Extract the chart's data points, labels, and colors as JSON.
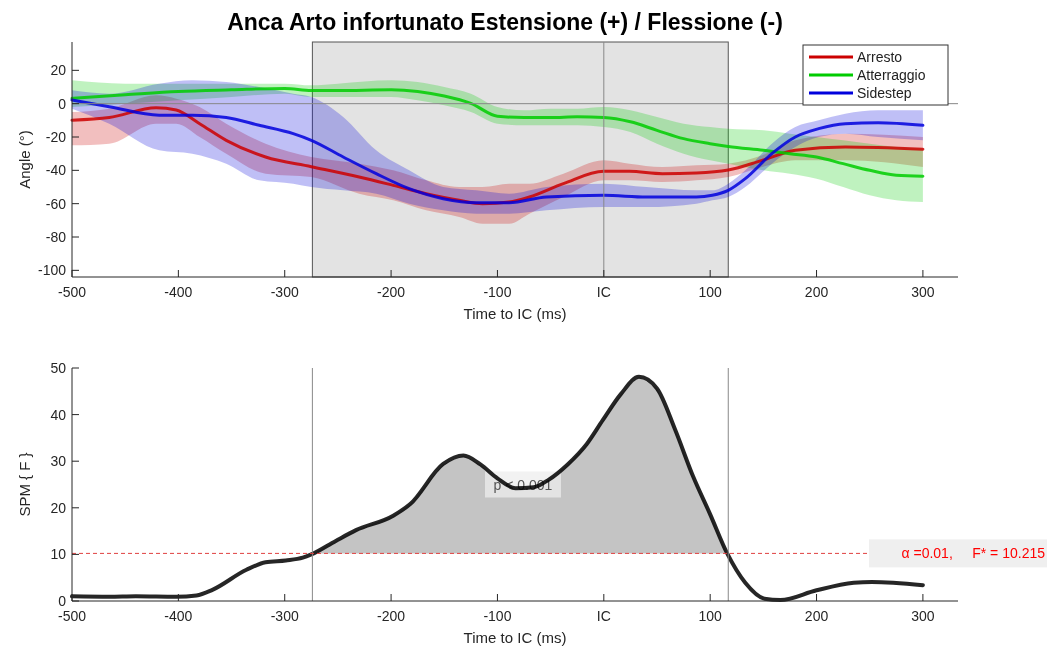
{
  "chart_data": [
    {
      "type": "line",
      "title": "Anca Arto infortunato Estensione (+) / Flessione (-)",
      "xlabel": "Time to IC (ms)",
      "ylabel": "Angle (°)",
      "xlim": [
        -500,
        333
      ],
      "ylim": [
        -104,
        37
      ],
      "xticks": [
        -500,
        -400,
        -300,
        -200,
        -100,
        {
          "value": 0,
          "label": "IC"
        },
        100,
        200,
        300
      ],
      "yticks": [
        -100,
        -80,
        -60,
        -40,
        -20,
        0,
        20
      ],
      "legend": "top right",
      "bands": [
        {
          "axis": "x",
          "from": -274,
          "to": 117,
          "color": "#e3e3e3"
        }
      ],
      "ref_lines": [
        {
          "axis": "x",
          "value": 0,
          "color": "#888888"
        },
        {
          "axis": "y",
          "value": 0,
          "color": "#888888"
        }
      ],
      "series": [
        {
          "name": "Arresto",
          "color": "#cc0000",
          "x": [
            -500,
            -465,
            -421,
            -402,
            -380,
            -355,
            -318,
            -275,
            -230,
            -198,
            -167,
            -136,
            -114,
            -89,
            -70,
            -38,
            0,
            24,
            55,
            87,
            117,
            149,
            180,
            227,
            300
          ],
          "values": [
            -9.9,
            -8.3,
            -2.4,
            -3.8,
            -12,
            -22,
            -32,
            -37.8,
            -44,
            -49,
            -54,
            -58,
            -60,
            -59,
            -56,
            -48,
            -40.6,
            -40.6,
            -42,
            -41.6,
            -39.8,
            -34,
            -28,
            -26,
            -27.3
          ],
          "lower": [
            -25,
            -24,
            -12,
            -12,
            -20,
            -30,
            -42,
            -44,
            -54,
            -58,
            -64,
            -68,
            -72,
            -72,
            -66,
            -56,
            -46,
            -46,
            -47,
            -46,
            -44,
            -38,
            -34,
            -34,
            -38
          ],
          "upper": [
            -5,
            -3,
            5,
            3,
            -2,
            -12,
            -24,
            -32,
            -36,
            -40,
            -46,
            -50,
            -50,
            -48,
            -48,
            -42,
            -34,
            -36,
            -38,
            -37,
            -36,
            -31,
            -22,
            -18,
            -20
          ]
        },
        {
          "name": "Atterraggio",
          "color": "#00cc00",
          "x": [
            -500,
            -450,
            -400,
            -350,
            -300,
            -275,
            -250,
            -200,
            -175,
            -150,
            -125,
            -100,
            -75,
            -50,
            -25,
            0,
            25,
            50,
            75,
            100,
            117,
            150,
            175,
            200,
            225,
            250,
            275,
            300
          ],
          "values": [
            3.2,
            5.3,
            7.3,
            8.3,
            9.1,
            7.9,
            7.9,
            8.3,
            7.3,
            4.6,
            0.2,
            -7.5,
            -8.3,
            -8.3,
            -7.9,
            -8.3,
            -10.9,
            -16,
            -21,
            -24,
            -25.7,
            -28,
            -30,
            -32,
            -36,
            -40,
            -43,
            -43.6
          ],
          "lower": [
            -2,
            0,
            2,
            4,
            6,
            4,
            4,
            4,
            2,
            -1,
            -5,
            -12,
            -13,
            -13,
            -13,
            -14,
            -17,
            -24,
            -30,
            -34,
            -36,
            -40,
            -42,
            -45,
            -50,
            -55,
            -58,
            -59
          ],
          "upper": [
            14,
            12,
            12,
            12,
            12,
            11,
            12,
            14,
            13,
            10,
            6,
            -2,
            -4,
            -3,
            -3,
            -2,
            -4,
            -8,
            -12,
            -14,
            -15,
            -16,
            -18,
            -20,
            -22,
            -24,
            -26,
            -27
          ]
        },
        {
          "name": "Sidestep",
          "color": "#0000dd",
          "x": [
            -500,
            -465,
            -418,
            -387,
            -355,
            -324,
            -292,
            -275,
            -245,
            -214,
            -183,
            -151,
            -120,
            -89,
            -54,
            0,
            40,
            87,
            102,
            117,
            133,
            158,
            180,
            202,
            227,
            258,
            300
          ],
          "values": [
            2.2,
            -1.8,
            -6.9,
            -6.9,
            -8.3,
            -13,
            -18,
            -22,
            -32,
            -42,
            -51,
            -57,
            -59.4,
            -59.4,
            -56,
            -55,
            -56,
            -56,
            -55,
            -52,
            -45,
            -30,
            -20,
            -15,
            -12,
            -11.5,
            -13
          ],
          "lower": [
            -3,
            -12,
            -28,
            -30,
            -36,
            -46,
            -48,
            -50,
            -52,
            -54,
            -60,
            -64,
            -66,
            -66,
            -64,
            -62,
            -62,
            -60,
            -58,
            -56,
            -50,
            -36,
            -26,
            -20,
            -18,
            -20,
            -22
          ],
          "upper": [
            8,
            6,
            12,
            14,
            13,
            10,
            6,
            4,
            -8,
            -28,
            -40,
            -50,
            -52,
            -54,
            -50,
            -48,
            -50,
            -52,
            -52,
            -48,
            -40,
            -24,
            -14,
            -10,
            -6,
            -4,
            -4
          ]
        }
      ]
    },
    {
      "type": "line",
      "xlabel": "Time to IC (ms)",
      "ylabel": "SPM { F }",
      "xlim": [
        -500,
        333
      ],
      "ylim": [
        0,
        50
      ],
      "xticks": [
        -500,
        -400,
        -300,
        -200,
        -100,
        {
          "value": 0,
          "label": "IC"
        },
        100,
        200,
        300
      ],
      "yticks": [
        0,
        10,
        20,
        30,
        40,
        50
      ],
      "ref_lines": [
        {
          "axis": "x",
          "value": -274,
          "color": "#888888"
        },
        {
          "axis": "x",
          "value": 117,
          "color": "#888888"
        },
        {
          "axis": "y",
          "value": 10.215,
          "color": "#e04040",
          "line_style": "dashed",
          "label": "α =0.01,     F* = 10.215"
        }
      ],
      "annotations": [
        {
          "text": "p < 0.001",
          "x": -76,
          "y": 25
        }
      ],
      "series": [
        {
          "type": "area",
          "color": "#c4c4c4",
          "x": [
            -275,
            -252,
            -233,
            -198,
            -182,
            -151,
            -132,
            -116,
            -100,
            -83,
            -66,
            -52,
            -34,
            -16,
            -1,
            16,
            33,
            50,
            67,
            84,
            100,
            116
          ],
          "values": [
            10,
            12.9,
            15.2,
            18.3,
            20.8,
            29.4,
            31.2,
            29.3,
            26.3,
            24.2,
            24.4,
            26,
            29.3,
            33.7,
            38.8,
            44.4,
            48.1,
            45.6,
            36.8,
            26.7,
            18.6,
            10.2
          ]
        },
        {
          "color": "#000000",
          "x": [
            -500,
            -465,
            -440,
            -402,
            -383,
            -368,
            -336,
            -318,
            -299,
            -283,
            -275,
            -252,
            -233,
            -198,
            -182,
            -151,
            -132,
            -116,
            -100,
            -83,
            -66,
            -52,
            -34,
            -16,
            -1,
            16,
            33,
            50,
            67,
            84,
            100,
            116,
            133,
            151,
            166,
            200,
            235,
            252,
            300
          ],
          "values": [
            1,
            0.9,
            1,
            0.9,
            1.2,
            2.4,
            6.7,
            8.3,
            8.7,
            9.3,
            10,
            12.9,
            15.2,
            18.3,
            20.8,
            29.4,
            31.2,
            29.3,
            26.3,
            24.2,
            24.4,
            26,
            29.3,
            33.7,
            38.8,
            44.4,
            48.1,
            45.6,
            36.8,
            26.7,
            18.6,
            10.2,
            3.9,
            0.5,
            0.2,
            2.3,
            3.9,
            4.1,
            3.4
          ]
        }
      ]
    }
  ]
}
